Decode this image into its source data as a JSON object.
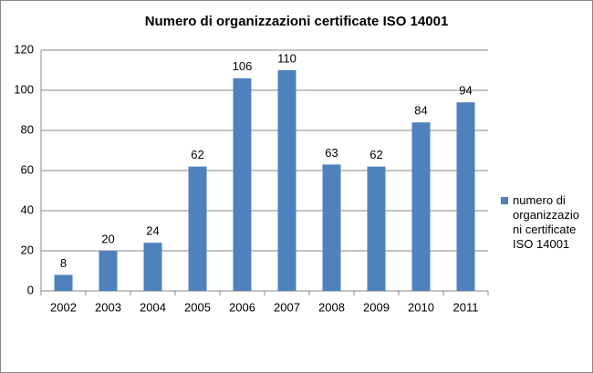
{
  "chart_data": {
    "type": "bar",
    "title": "Numero di organizzazioni certificate ISO 14001",
    "categories": [
      "2002",
      "2003",
      "2004",
      "2005",
      "2006",
      "2007",
      "2008",
      "2009",
      "2010",
      "2011"
    ],
    "series": [
      {
        "name": "numero di organizzazioni certificate ISO 14001",
        "color": "#4f81bd",
        "values": [
          8,
          20,
          24,
          62,
          106,
          110,
          63,
          62,
          84,
          94
        ]
      }
    ],
    "ylim": [
      0,
      120
    ],
    "yticks": [
      0,
      20,
      40,
      60,
      80,
      100,
      120
    ],
    "grid": true,
    "legend": "right",
    "data_labels": true
  }
}
